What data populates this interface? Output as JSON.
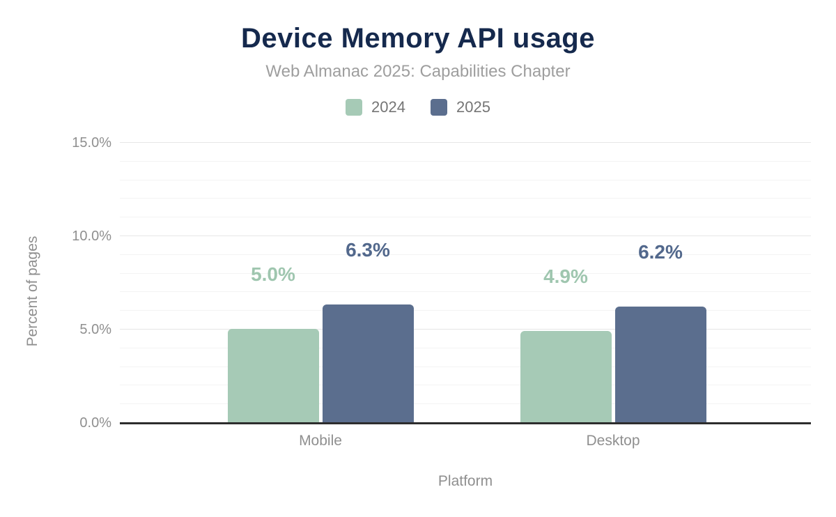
{
  "header": {
    "title": "Device Memory API usage",
    "subtitle": "Web Almanac 2025: Capabilities Chapter"
  },
  "chart_data": {
    "type": "bar",
    "title": "Device Memory API usage",
    "subtitle": "Web Almanac 2025: Capabilities Chapter",
    "categories": [
      "Mobile",
      "Desktop"
    ],
    "series": [
      {
        "name": "2024",
        "values": [
          5.0,
          4.9
        ],
        "labels": [
          "5.0%",
          "4.9%"
        ],
        "color": "#a6cab6",
        "label_color": "#9fc6af"
      },
      {
        "name": "2025",
        "values": [
          6.3,
          6.2
        ],
        "labels": [
          "6.3%",
          "6.2%"
        ],
        "color": "#5b6e8e",
        "label_color": "#52688c"
      }
    ],
    "xlabel": "Platform",
    "ylabel": "Percent of pages",
    "ylim": [
      0,
      15
    ],
    "yticks": [
      {
        "value": 0,
        "label": "0.0%"
      },
      {
        "value": 5,
        "label": "5.0%"
      },
      {
        "value": 10,
        "label": "10.0%"
      },
      {
        "value": 15,
        "label": "15.0%"
      }
    ],
    "grid": {
      "minor_step": 1,
      "major_step": 5,
      "orientation": "horizontal"
    },
    "legend_position": "top"
  },
  "colors": {
    "title": "#15294d",
    "subtitle": "#9e9e9e",
    "axis_text": "#8f8f8f",
    "axis_line": "#2d2d2d",
    "background": "#ffffff"
  }
}
